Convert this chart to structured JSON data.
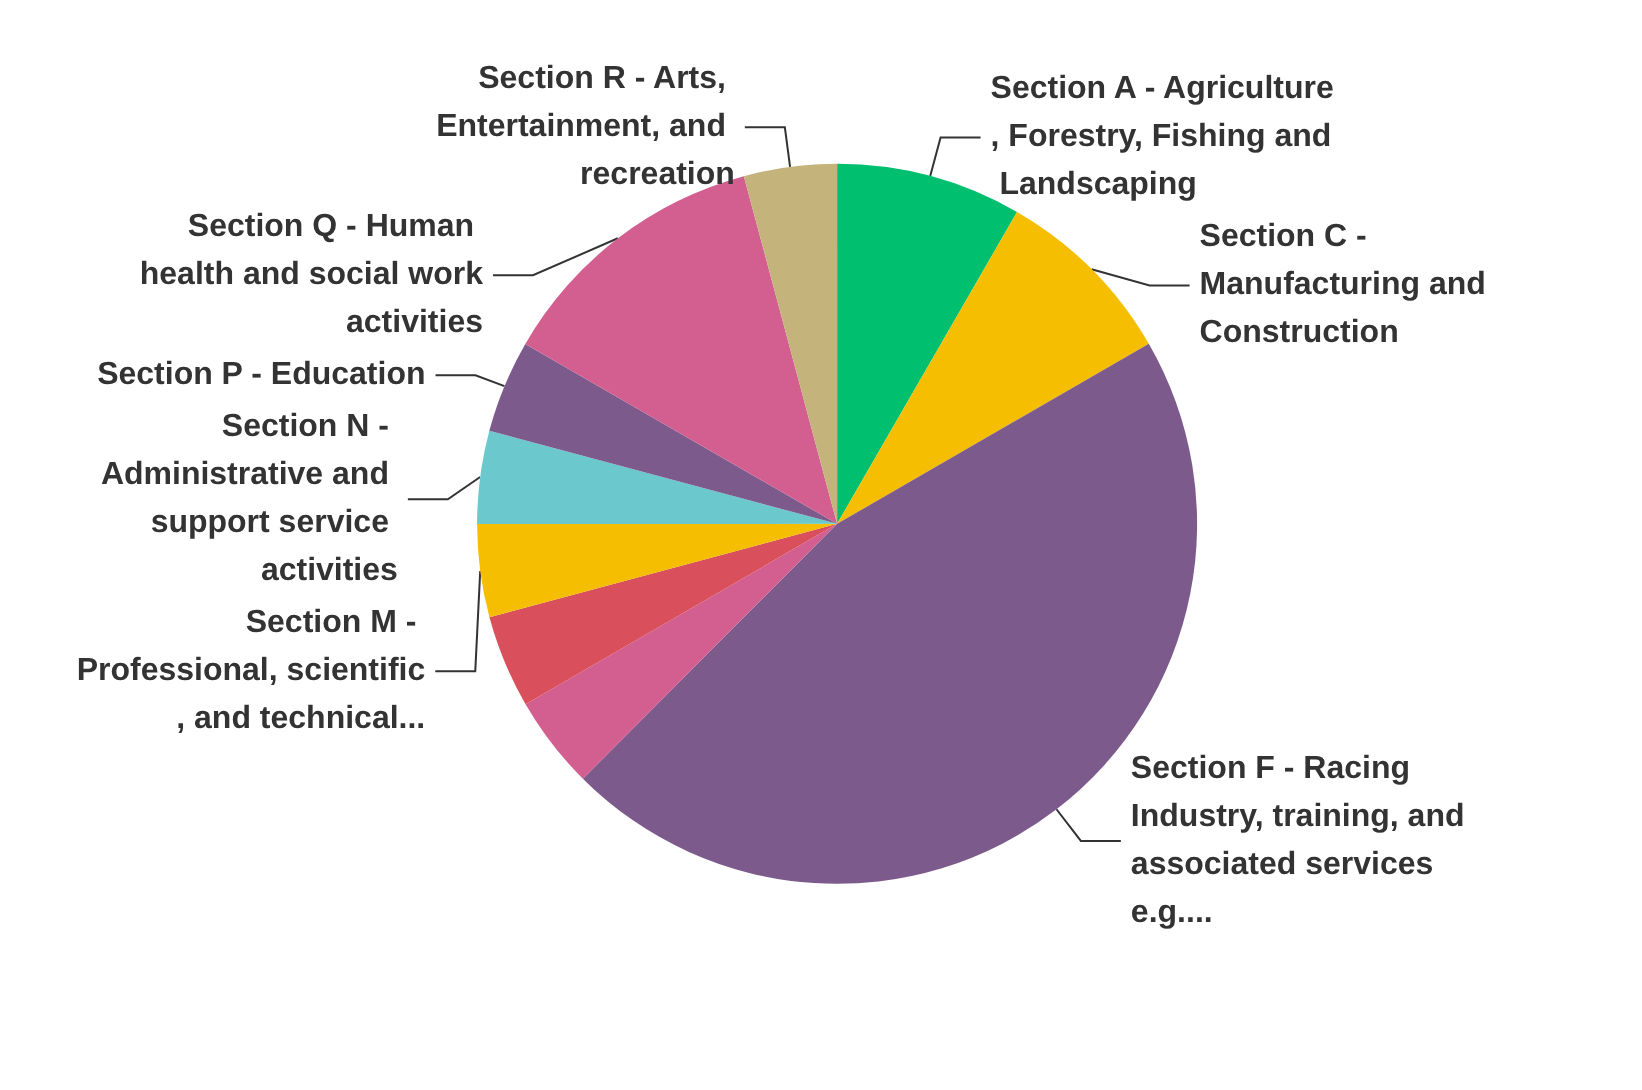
{
  "chart_data": {
    "type": "pie",
    "categories": [
      "Section A - Agriculture, Forestry, Fishing and Landscaping",
      "Section C - Manufacturing and Construction",
      "Section F - Racing Industry, training, and associated services e.g....",
      null,
      null,
      "Section M - Professional, scientific, and technical...",
      "Section N - Administrative and support service activities",
      "Section P - Education",
      "Section Q - Human health and social work activities",
      "Section R - Arts, Entertainment, and recreation"
    ],
    "values": [
      8.33,
      8.33,
      45.82,
      4.17,
      4.17,
      4.17,
      4.17,
      4.17,
      12.5,
      4.17
    ],
    "colors": [
      "#00bf6f",
      "#f5be00",
      "#7d5a8c",
      "#d25f90",
      "#d94f5c",
      "#f5be00",
      "#6bc8cd",
      "#7d5a8c",
      "#d25f90",
      "#c4b37a"
    ],
    "legend": false
  }
}
